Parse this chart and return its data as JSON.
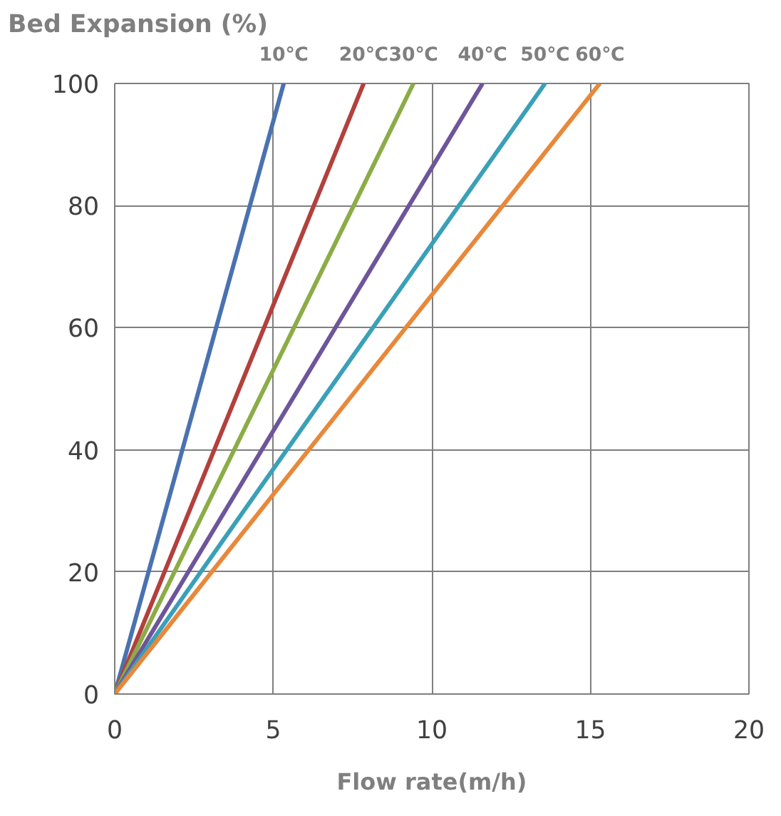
{
  "chart_data": {
    "type": "line",
    "ylabel": "Bed Expansion (%)",
    "xlabel": "Flow rate(m/h)",
    "xlim": [
      0,
      20
    ],
    "xticks": [
      0,
      5,
      10,
      15,
      20
    ],
    "ylim": [
      0,
      100
    ],
    "yticks": [
      0,
      20,
      40,
      60,
      80,
      100
    ],
    "grid": true,
    "marker": "none",
    "line_style": "solid",
    "series": [
      {
        "name": "10℃",
        "color": "#4a72b0",
        "x": [
          0,
          5.33
        ],
        "values": [
          0,
          100
        ]
      },
      {
        "name": "20℃",
        "color": "#b2403c",
        "x": [
          0,
          7.85
        ],
        "values": [
          0,
          100
        ]
      },
      {
        "name": "30℃",
        "color": "#8bac46",
        "x": [
          0,
          9.42
        ],
        "values": [
          0,
          100
        ]
      },
      {
        "name": "40℃",
        "color": "#6e559a",
        "x": [
          0,
          11.6
        ],
        "values": [
          0,
          100
        ]
      },
      {
        "name": "50℃",
        "color": "#3aa0b8",
        "x": [
          0,
          13.57
        ],
        "values": [
          0,
          100
        ]
      },
      {
        "name": "60℃",
        "color": "#e8883a",
        "x": [
          0,
          15.3
        ],
        "values": [
          0,
          100
        ]
      }
    ]
  }
}
